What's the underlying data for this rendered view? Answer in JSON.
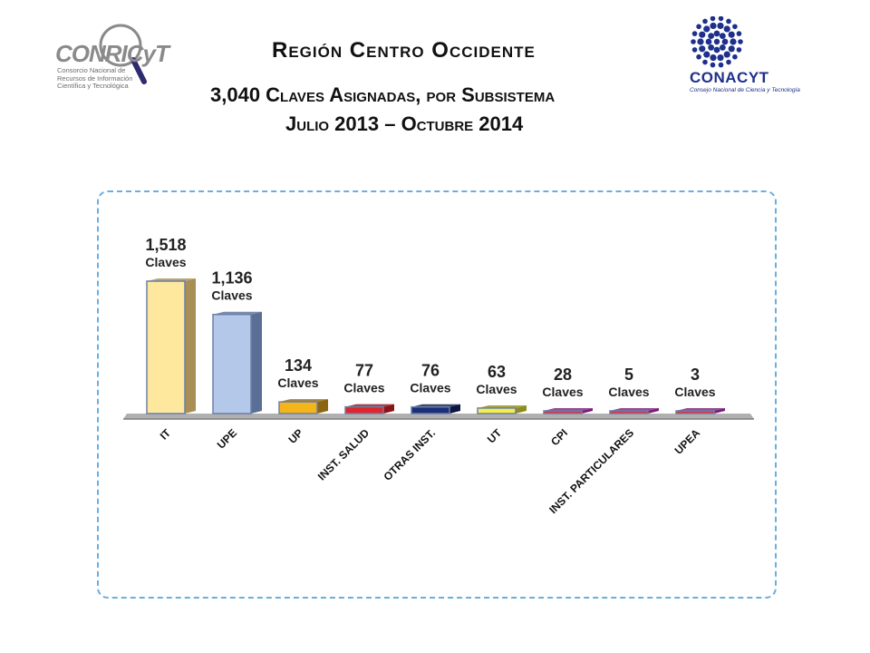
{
  "header": {
    "title": "Región Centro Occidente",
    "subtitle": "3,040 Claves Asignadas, por Subsistema",
    "period": "Julio 2013 – Octubre 2014"
  },
  "logos": {
    "left": {
      "name": "CONRICyT",
      "tagline_lines": [
        "Consorcio Nacional de",
        "Recursos de Información",
        "Científica y Tecnológica"
      ]
    },
    "right": {
      "name": "CONACYT",
      "tagline": "Consejo Nacional de Ciencia y Tecnología"
    }
  },
  "chart_data": {
    "type": "bar",
    "categories": [
      "IT",
      "UPE",
      "UP",
      "INST. SALUD",
      "OTRAS INST.",
      "UT",
      "CPI",
      "INST. PARTICULARES",
      "UPEA"
    ],
    "values": [
      1518,
      1136,
      134,
      77,
      76,
      63,
      28,
      5,
      3
    ],
    "value_labels": [
      "1,518",
      "1,136",
      "134",
      "77",
      "76",
      "63",
      "28",
      "5",
      "3"
    ],
    "unit_label": "Claves",
    "colors": [
      "#fde89e",
      "#b4c8ea",
      "#f5b418",
      "#e0262b",
      "#1a2f7a",
      "#f2f04a",
      "#e03040",
      "#e03040",
      "#e03040"
    ],
    "side_colors": [
      "#a88f55",
      "#5a6e96",
      "#8c6510",
      "#8a1418",
      "#0c173f",
      "#8e8c1e",
      "#7a1c7a",
      "#7a1c7a",
      "#7a1c7a"
    ],
    "grid": false,
    "legend": "none"
  }
}
